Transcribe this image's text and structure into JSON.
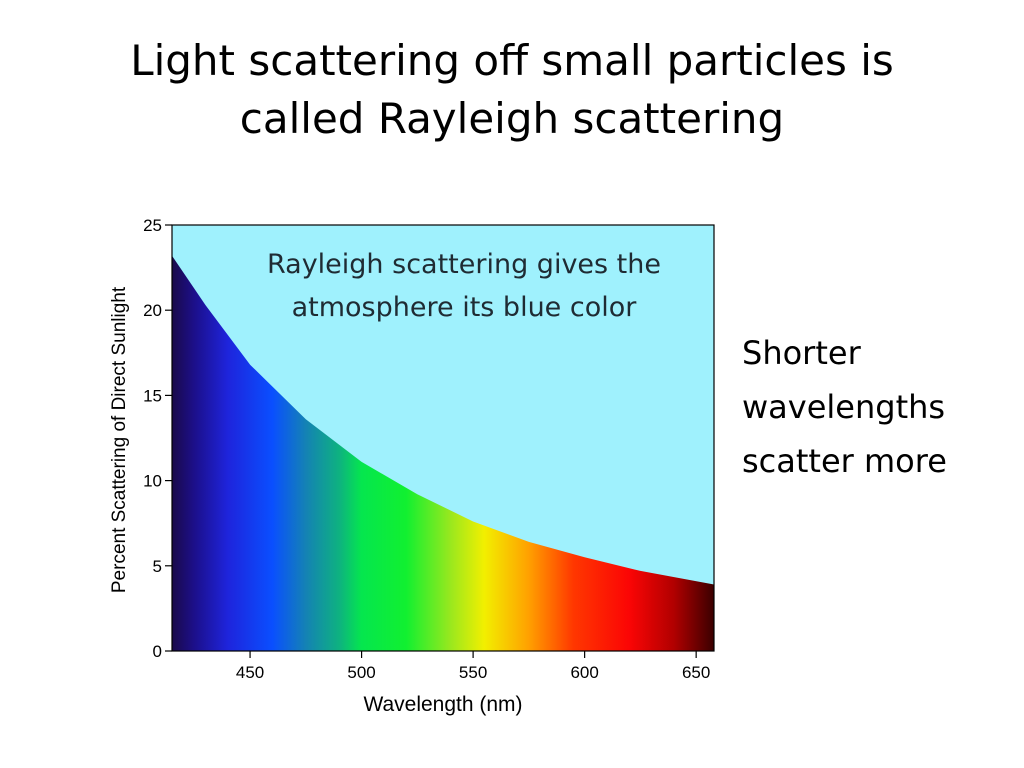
{
  "slide": {
    "title_lines": [
      "Light scattering off small particles is",
      "called Rayleigh scattering"
    ],
    "side_text_lines": [
      "Shorter",
      "wavelengths",
      "scatter more"
    ]
  },
  "chart_data": {
    "type": "area",
    "title": "",
    "annotation_lines": [
      "Rayleigh scattering gives the",
      "atmosphere its blue color"
    ],
    "xlabel": "Wavelength (nm)",
    "ylabel": "Percent Scattering of Direct Sunlight",
    "xlim": [
      415,
      658
    ],
    "ylim": [
      0,
      25
    ],
    "x_ticks": [
      450,
      500,
      550,
      600,
      650
    ],
    "y_ticks": [
      0,
      5,
      10,
      15,
      20,
      25
    ],
    "grid": false,
    "legend": "none",
    "series": [
      {
        "x": [
          415,
          430,
          450,
          475,
          500,
          525,
          550,
          575,
          600,
          625,
          658
        ],
        "y": [
          23.2,
          20.3,
          16.8,
          13.6,
          11.1,
          9.2,
          7.6,
          6.4,
          5.5,
          4.7,
          3.9
        ]
      }
    ],
    "colors": {
      "sky": "#9ff1fd",
      "spectrum": [
        {
          "wl": 415,
          "color": "#1a0a4a"
        },
        {
          "wl": 425,
          "color": "#1c0f8a"
        },
        {
          "wl": 440,
          "color": "#1e24dc"
        },
        {
          "wl": 460,
          "color": "#0a4fff"
        },
        {
          "wl": 475,
          "color": "#1482b4"
        },
        {
          "wl": 490,
          "color": "#0eb280"
        },
        {
          "wl": 500,
          "color": "#05e64e"
        },
        {
          "wl": 520,
          "color": "#11f030"
        },
        {
          "wl": 540,
          "color": "#9ae81e"
        },
        {
          "wl": 555,
          "color": "#f2ef00"
        },
        {
          "wl": 575,
          "color": "#ffa000"
        },
        {
          "wl": 595,
          "color": "#ff3700"
        },
        {
          "wl": 620,
          "color": "#fb0505"
        },
        {
          "wl": 640,
          "color": "#b10000"
        },
        {
          "wl": 658,
          "color": "#3a0000"
        }
      ]
    }
  }
}
